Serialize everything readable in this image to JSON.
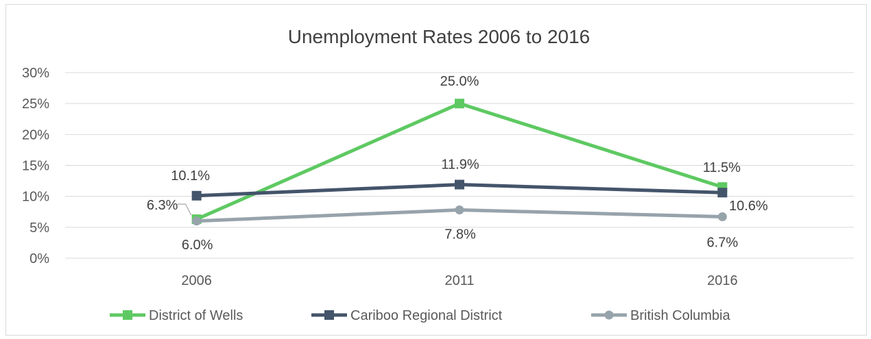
{
  "chart_data": {
    "type": "line",
    "title": "Unemployment Rates 2006 to 2016",
    "categories": [
      "2006",
      "2011",
      "2016"
    ],
    "ylim": [
      0,
      30
    ],
    "yticks": [
      "0%",
      "5%",
      "10%",
      "15%",
      "20%",
      "25%",
      "30%"
    ],
    "grid": true,
    "legend_position": "bottom",
    "series": [
      {
        "name": "District of Wells",
        "color": "#5ec962",
        "marker": "square",
        "values": [
          6.3,
          25.0,
          11.5
        ],
        "labels": [
          "6.3%",
          "25.0%",
          "11.5%"
        ]
      },
      {
        "name": "Cariboo Regional District",
        "color": "#44546a",
        "marker": "square",
        "values": [
          10.1,
          11.9,
          10.6
        ],
        "labels": [
          "10.1%",
          "11.9%",
          "10.6%"
        ]
      },
      {
        "name": "British Columbia",
        "color": "#97a3ab",
        "marker": "circle",
        "values": [
          6.0,
          7.8,
          6.7
        ],
        "labels": [
          "6.0%",
          "7.8%",
          "6.7%"
        ]
      }
    ]
  }
}
